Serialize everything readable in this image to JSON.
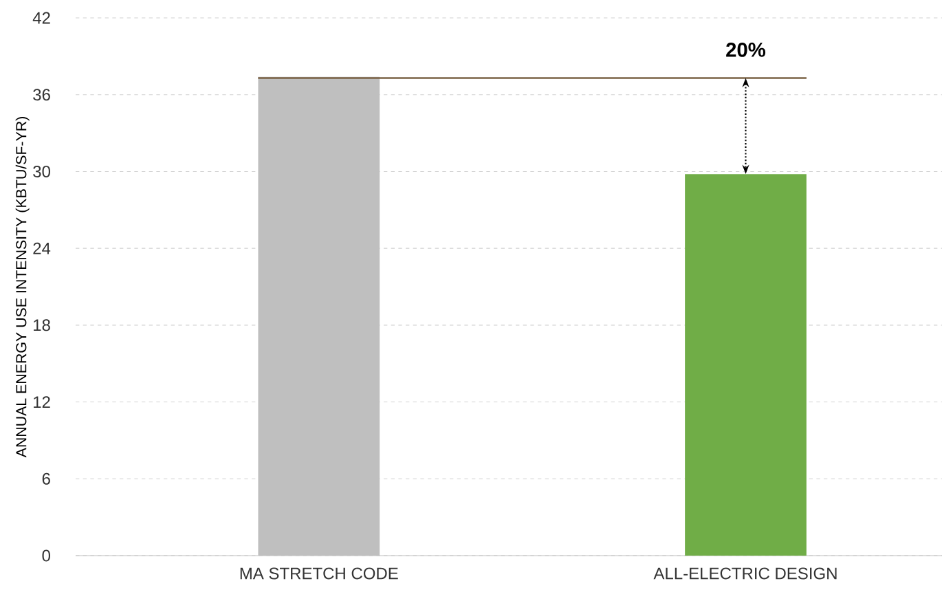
{
  "chart_data": {
    "type": "bar",
    "ylabel": "ANNUAL ENERGY USE INTENSITY (KBTU/SF-YR)",
    "categories": [
      "MA STRETCH CODE",
      "ALL-ELECTRIC DESIGN"
    ],
    "values": [
      37.4,
      29.8
    ],
    "colors": [
      "#bfbfbf",
      "#70ad47"
    ],
    "ylim": [
      0,
      42
    ],
    "yticks": [
      0,
      6,
      12,
      18,
      24,
      30,
      36,
      42
    ],
    "grid": "y",
    "ref_lines": [
      {
        "axis": "y",
        "value": 37.3,
        "color": "#7a6245"
      }
    ],
    "annotations": [
      "20%"
    ]
  }
}
